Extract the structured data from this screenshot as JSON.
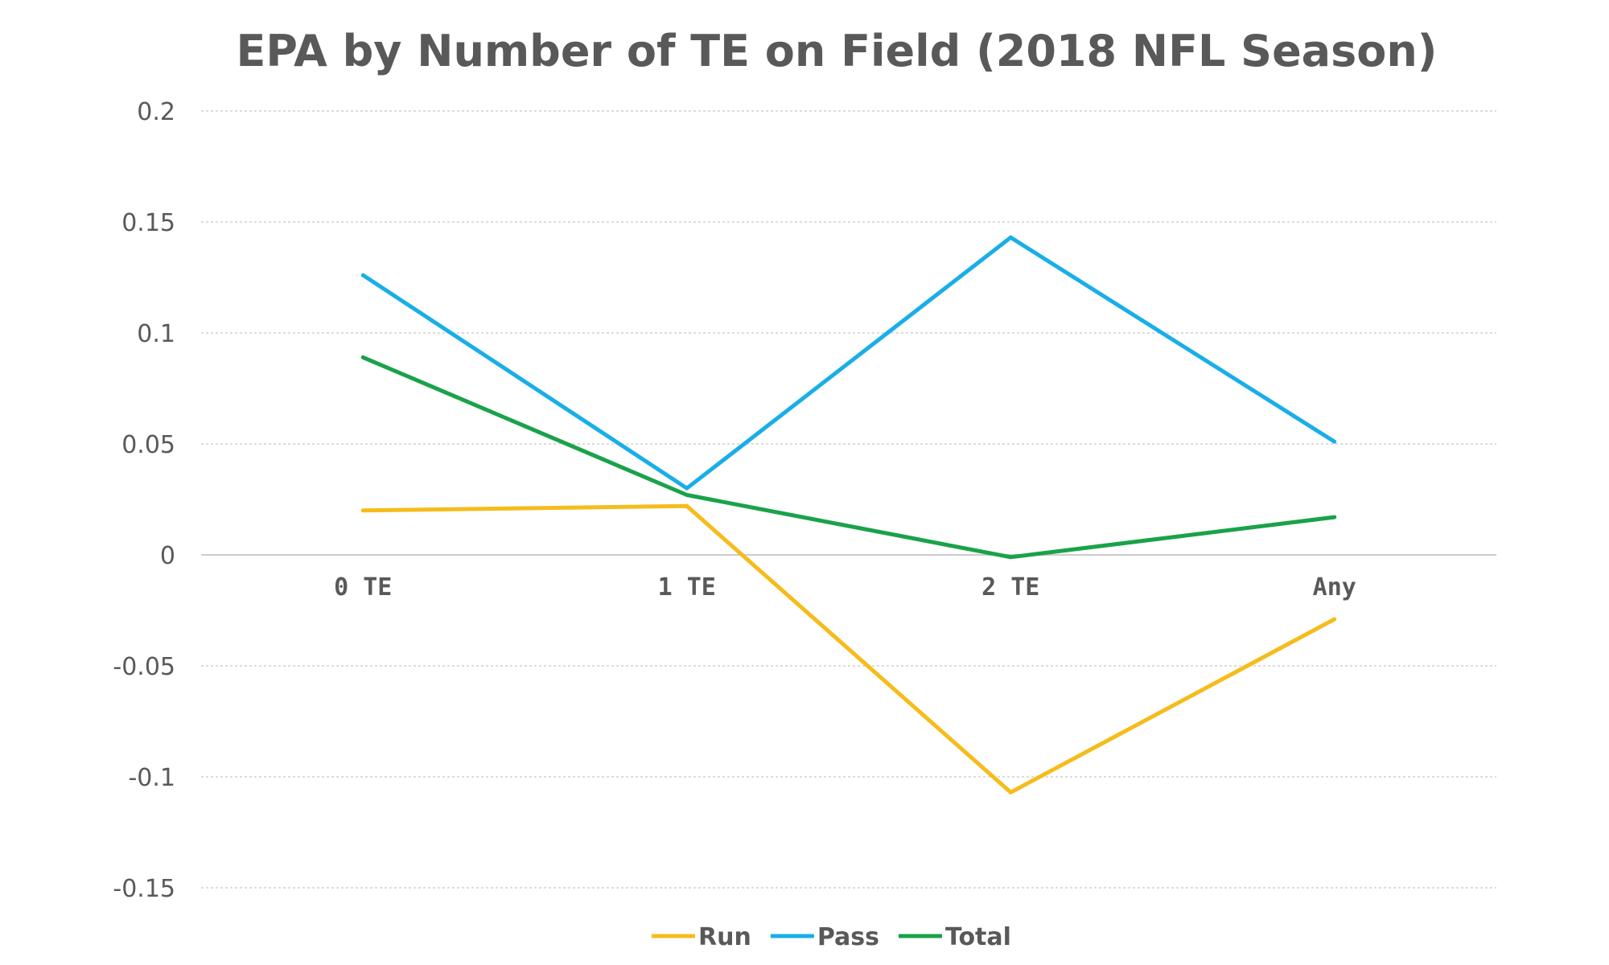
{
  "chart_data": {
    "type": "line",
    "title": "EPA by Number of TE on Field (2018 NFL Season)",
    "xlabel": "",
    "ylabel": "",
    "categories": [
      "0 TE",
      "1 TE",
      "2 TE",
      "Any"
    ],
    "ylim": [
      -0.15,
      0.2
    ],
    "yticks": [
      {
        "value": 0.2,
        "label": "0.2"
      },
      {
        "value": 0.15,
        "label": "0.15"
      },
      {
        "value": 0.1,
        "label": "0.1"
      },
      {
        "value": 0.05,
        "label": "0.05"
      },
      {
        "value": 0,
        "label": "0"
      },
      {
        "value": -0.05,
        "label": "-0.05"
      },
      {
        "value": -0.1,
        "label": "-0.1"
      },
      {
        "value": -0.15,
        "label": "-0.15"
      }
    ],
    "grid": true,
    "legend_position": "bottom",
    "series": [
      {
        "name": "Run",
        "color": "#F5BC1B",
        "values": [
          0.02,
          0.022,
          -0.107,
          -0.029
        ]
      },
      {
        "name": "Pass",
        "color": "#19AEE8",
        "values": [
          0.126,
          0.03,
          0.143,
          0.051
        ]
      },
      {
        "name": "Total",
        "color": "#1AA24A",
        "values": [
          0.089,
          0.027,
          -0.001,
          0.017
        ]
      }
    ]
  }
}
